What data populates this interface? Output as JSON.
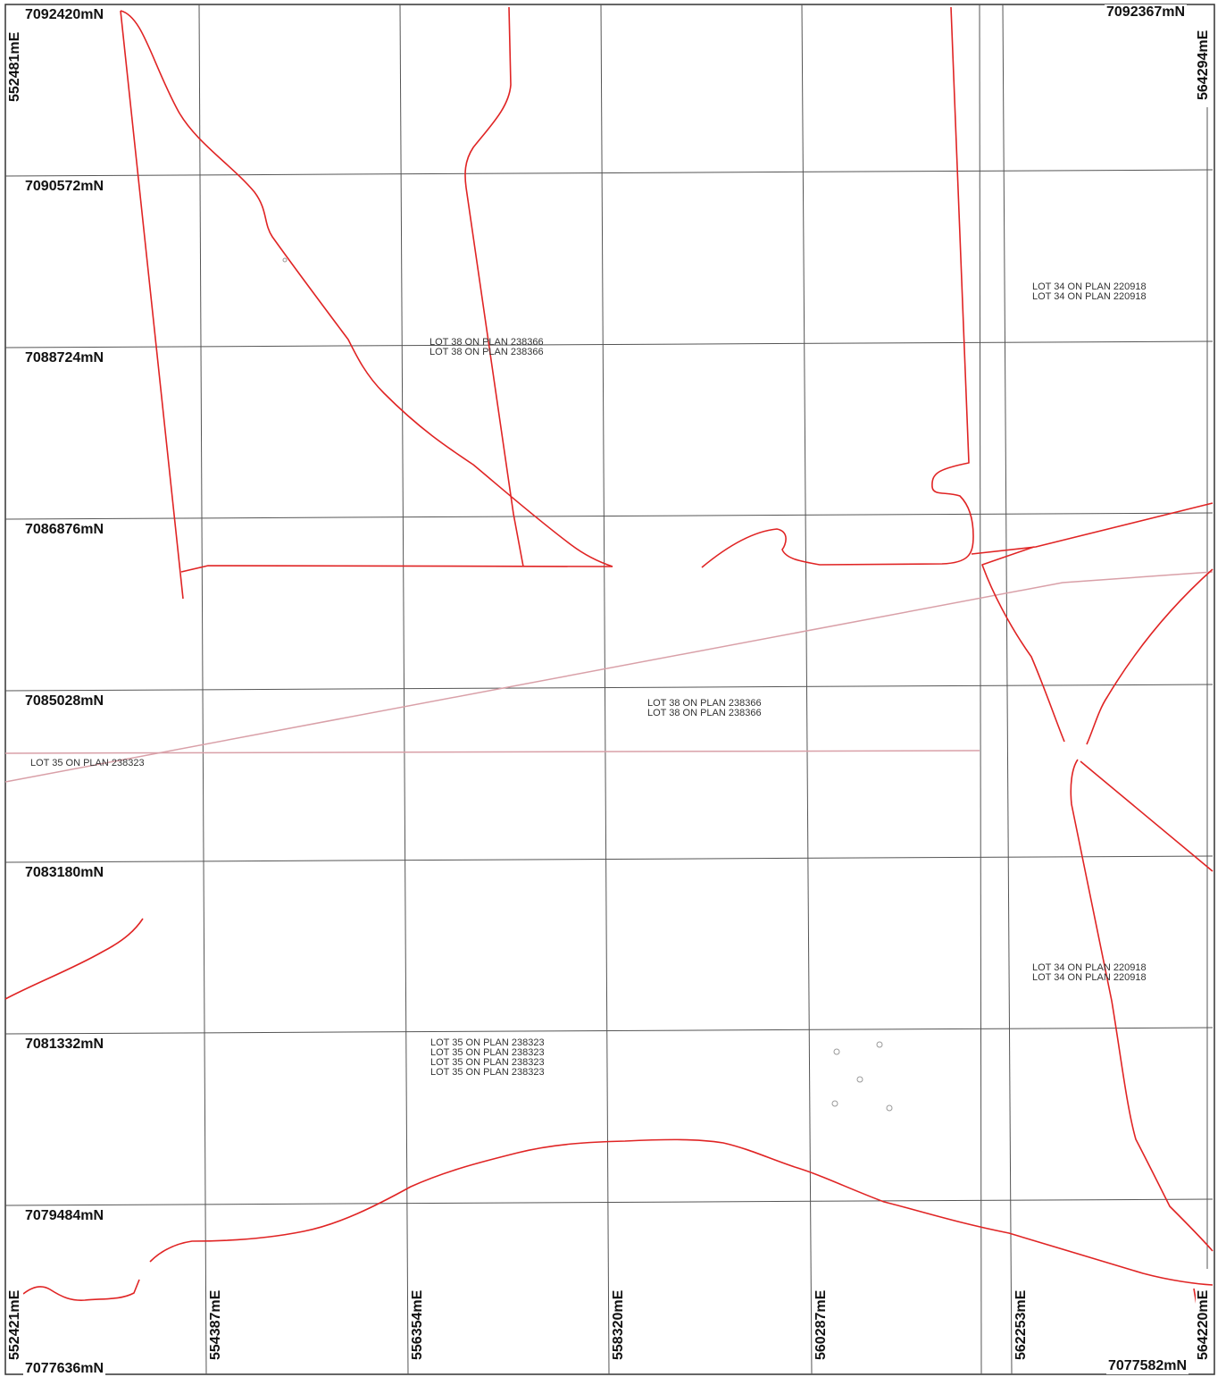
{
  "map": {
    "northings": [
      "7092420mN",
      "7090572mN",
      "7088724mN",
      "7086876mN",
      "7085028mN",
      "7083180mN",
      "7081332mN",
      "7079484mN",
      "7077636mN"
    ],
    "northing_top_right": "7092367mN",
    "northing_bottom_right": "7077582mN",
    "eastings_bottom": [
      "552421mE",
      "554387mE",
      "556354mE",
      "558320mE",
      "560287mE",
      "562253mE",
      "564220mE"
    ],
    "easting_top_left": "552481mE",
    "easting_top_right": "564294mE",
    "lot_labels": {
      "lot38_top": [
        "LOT 38 ON PLAN 238366",
        "LOT 38 ON PLAN 238366"
      ],
      "lot34_top": [
        "LOT 34 ON PLAN 220918",
        "LOT 34 ON PLAN 220918"
      ],
      "lot38_mid": [
        "LOT 38 ON PLAN 238366",
        "LOT 38 ON PLAN 238366"
      ],
      "lot35_left": "LOT 35 ON PLAN 238323",
      "lot34_lower": [
        "LOT 34 ON PLAN 220918",
        "LOT 34 ON PLAN 220918"
      ],
      "lot35_lower": [
        "LOT 35 ON PLAN 238323",
        "LOT 35 ON PLAN 238323",
        "LOT 35 ON PLAN 238323",
        "LOT 35 ON PLAN 238323"
      ]
    },
    "colors": {
      "boundary": "#e02424",
      "grid": "#555555",
      "lot_line": "#d9a0a8"
    }
  }
}
